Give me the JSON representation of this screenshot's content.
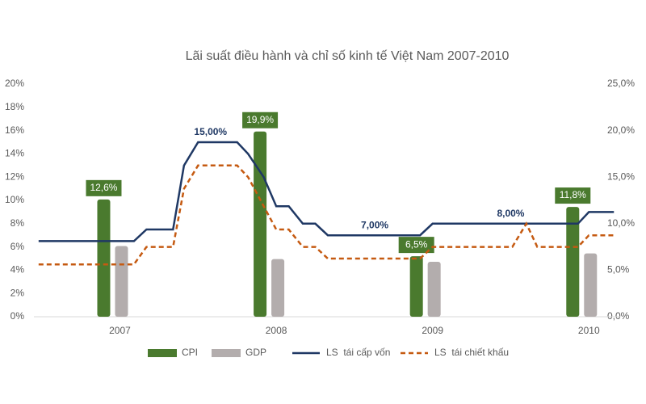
{
  "chart_data": {
    "type": "combo",
    "title": "Lãi suất điều hành và chỉ số kinh tế Việt Nam 2007-2010",
    "xlim": [
      2006.45,
      2010.2
    ],
    "xticks": [
      2007,
      2008,
      2009,
      2010
    ],
    "ylim": [
      0,
      20
    ],
    "yticks": [
      {
        "value": 0,
        "label": "0%"
      },
      {
        "value": 2,
        "label": "2%"
      },
      {
        "value": 4,
        "label": "4%"
      },
      {
        "value": 6,
        "label": "6%"
      },
      {
        "value": 8,
        "label": "8%"
      },
      {
        "value": 10,
        "label": "10%"
      },
      {
        "value": 12,
        "label": "12%"
      },
      {
        "value": 14,
        "label": "14%"
      },
      {
        "value": 16,
        "label": "16%"
      },
      {
        "value": 18,
        "label": "18%"
      },
      {
        "value": 20,
        "label": "20%"
      }
    ],
    "y2lim": [
      0,
      25
    ],
    "y2ticks": [
      {
        "value": 0,
        "label": "0,0%"
      },
      {
        "value": 5,
        "label": "5,0%"
      },
      {
        "value": 10,
        "label": "10,0%"
      },
      {
        "value": 15,
        "label": "15,0%"
      },
      {
        "value": 20,
        "label": "20,0%"
      },
      {
        "value": 25,
        "label": "25,0%"
      }
    ],
    "series": [
      {
        "name": "CPI",
        "type": "bar",
        "axis": "y2",
        "color": "#4a7a2e",
        "x": [
          2007,
          2008,
          2009,
          2010
        ],
        "values": [
          12.6,
          19.9,
          6.5,
          11.8
        ],
        "value_labels": [
          "12,6%",
          "19,9%",
          "6,5%",
          "11,8%"
        ]
      },
      {
        "name": "GDP",
        "type": "bar",
        "axis": "y2",
        "color": "#b3adad",
        "x": [
          2007,
          2008,
          2009,
          2010
        ],
        "values": [
          7.6,
          6.2,
          5.9,
          6.8
        ]
      },
      {
        "name": "LS  tái cấp vốn",
        "type": "line",
        "color": "#1f3864",
        "dash": false,
        "x": [
          2006.48,
          2007.09,
          2007.17,
          2007.34,
          2007.41,
          2007.5,
          2007.58,
          2007.75,
          2007.82,
          2007.92,
          2008,
          2008.08,
          2008.17,
          2008.25,
          2008.33,
          2008.63,
          2008.92,
          2009,
          2009.5,
          2009.93,
          2010,
          2010.16
        ],
        "values": [
          6.5,
          6.5,
          7.5,
          7.5,
          13,
          15,
          15,
          15,
          14,
          12,
          9.5,
          9.5,
          8,
          8,
          7,
          7,
          7,
          8,
          8,
          8,
          9,
          9
        ],
        "value_labels": [
          null,
          null,
          null,
          null,
          null,
          null,
          "15,00%",
          null,
          null,
          null,
          null,
          null,
          null,
          null,
          null,
          "7,00%",
          null,
          null,
          "8,00%",
          null,
          null,
          null
        ]
      },
      {
        "name": "LS  tái chiết khấu",
        "type": "line",
        "color": "#c55a11",
        "dash": true,
        "x": [
          2006.48,
          2007.09,
          2007.17,
          2007.34,
          2007.41,
          2007.5,
          2007.75,
          2007.82,
          2007.92,
          2008,
          2008.08,
          2008.17,
          2008.25,
          2008.33,
          2008.92,
          2009,
          2009.51,
          2009.6,
          2009.67,
          2009.84,
          2009.93,
          2010,
          2010.16
        ],
        "values": [
          4.5,
          4.5,
          6,
          6,
          11,
          13,
          13,
          12,
          9.5,
          7.5,
          7.5,
          6,
          6,
          5,
          5,
          6,
          6,
          8,
          6,
          6,
          6,
          7,
          7
        ]
      }
    ]
  }
}
